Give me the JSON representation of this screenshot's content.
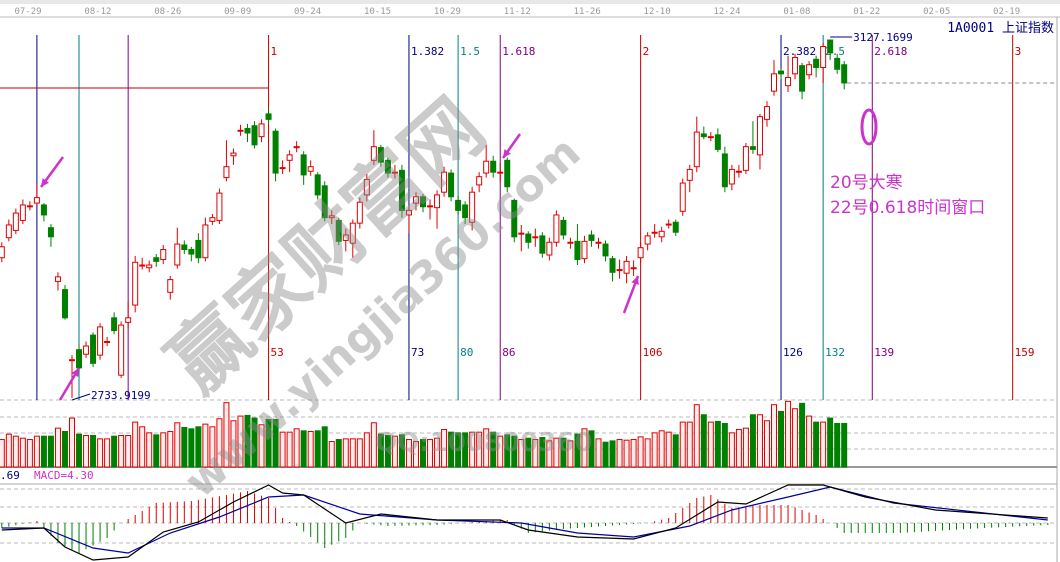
{
  "header": {
    "title": "1A0001 上证指数",
    "dates": [
      "07-29",
      "08-12",
      "08-26",
      "09-09",
      "09-24",
      "10-15",
      "10-29",
      "11-12",
      "11-26",
      "12-10",
      "12-24",
      "01-08",
      "01-22",
      "02-05",
      "02-19"
    ]
  },
  "annotations": {
    "high_label": "3127.1699",
    "low_label": "2733.9199",
    "note_line1": "20号大寒",
    "note_line2": "22号0.618时间窗口",
    "accent_color": "#cc33cc"
  },
  "watermark": {
    "brand": "赢家财富网",
    "url": "www.yingjia360.com",
    "qq": "QQ:100800360"
  },
  "macd_panel": {
    "left_label": ".69",
    "macd_label": "MACD=4.30"
  },
  "colors": {
    "up": "#e00000",
    "down": "#008000",
    "fib_blue": "#000080",
    "fib_teal": "#008080",
    "fib_purple": "#800080",
    "fib_red": "#c00000"
  },
  "chart_data": {
    "type": "candlestick",
    "title": "1A0001 上证指数",
    "price_range": [
      2733.92,
      3127.17
    ],
    "fib_time_lines": [
      {
        "top_label": "1",
        "bottom_label": "53",
        "color": "fib_red"
      },
      {
        "top_label": "1.382",
        "bottom_label": "73",
        "color": "fib_blue"
      },
      {
        "top_label": "1.5",
        "bottom_label": "80",
        "color": "fib_teal"
      },
      {
        "top_label": "1.618",
        "bottom_label": "86",
        "color": "fib_purple"
      },
      {
        "top_label": "2",
        "bottom_label": "106",
        "color": "fib_red"
      },
      {
        "top_label": "2.382",
        "bottom_label": "126",
        "color": "fib_blue"
      },
      {
        "top_label": "2.5",
        "bottom_label": "132",
        "color": "fib_teal"
      },
      {
        "top_label": "2.618",
        "bottom_label": "139",
        "color": "fib_purple"
      },
      {
        "top_label": "3",
        "bottom_label": "159",
        "color": "fib_red"
      }
    ],
    "candles_ohlc": [
      [
        2888,
        2905,
        2883,
        2900
      ],
      [
        2910,
        2930,
        2906,
        2924
      ],
      [
        2918,
        2942,
        2914,
        2937
      ],
      [
        2929,
        2952,
        2925,
        2946
      ],
      [
        2945,
        2950,
        2940,
        2945
      ],
      [
        2948,
        2968,
        2945,
        2954
      ],
      [
        2946,
        2948,
        2928,
        2935
      ],
      [
        2921,
        2925,
        2900,
        2911
      ],
      [
        2862,
        2872,
        2852,
        2867
      ],
      [
        2853,
        2858,
        2820,
        2822
      ],
      [
        2776,
        2781,
        2733.92,
        2776
      ],
      [
        2787,
        2793,
        2762,
        2767
      ],
      [
        2782,
        2796,
        2778,
        2791
      ],
      [
        2803,
        2806,
        2768,
        2772
      ],
      [
        2781,
        2816,
        2776,
        2812
      ],
      [
        2796,
        2801,
        2791,
        2796
      ],
      [
        2822,
        2828,
        2804,
        2808
      ],
      [
        2759,
        2818,
        2756,
        2814
      ],
      [
        2817,
        2840,
        2810,
        2822
      ],
      [
        2836,
        2890,
        2828,
        2883
      ],
      [
        2880,
        2888,
        2875,
        2880
      ],
      [
        2877,
        2885,
        2872,
        2880
      ],
      [
        2888,
        2892,
        2878,
        2884
      ],
      [
        2886,
        2902,
        2881,
        2897
      ],
      [
        2850,
        2868,
        2842,
        2864
      ],
      [
        2880,
        2921,
        2876,
        2903
      ],
      [
        2902,
        2907,
        2892,
        2897
      ],
      [
        2897,
        2900,
        2884,
        2892
      ],
      [
        2907,
        2915,
        2882,
        2888
      ],
      [
        2888,
        2932,
        2884,
        2924
      ],
      [
        2928,
        2936,
        2924,
        2932
      ],
      [
        2929,
        2964,
        2925,
        2959
      ],
      [
        2976,
        3017,
        2972,
        2988
      ],
      [
        3000,
        3008,
        2990,
        3003
      ],
      [
        3028,
        3034,
        3022,
        3028
      ],
      [
        3030,
        3035,
        3015,
        3025
      ],
      [
        3033,
        3038,
        3008,
        3012
      ],
      [
        3021,
        3040,
        3015,
        3035
      ],
      [
        3046,
        3052,
        3036,
        3040
      ],
      [
        3027,
        3030,
        2972,
        2981
      ],
      [
        2987,
        2995,
        2980,
        2987
      ],
      [
        2995,
        3006,
        2982,
        3001
      ],
      [
        3010,
        3016,
        3004,
        3010
      ],
      [
        3001,
        3005,
        2968,
        2979
      ],
      [
        2983,
        2995,
        2978,
        2988
      ],
      [
        2979,
        2982,
        2952,
        2957
      ],
      [
        2967,
        2972,
        2928,
        2932
      ],
      [
        2932,
        2940,
        2925,
        2934
      ],
      [
        2929,
        2932,
        2902,
        2906
      ],
      [
        2907,
        2920,
        2895,
        2913
      ],
      [
        2904,
        2930,
        2888,
        2926
      ],
      [
        2926,
        2954,
        2920,
        2949
      ],
      [
        2957,
        2980,
        2950,
        2974
      ],
      [
        2995,
        3028,
        2990,
        3010
      ],
      [
        3009,
        3012,
        2988,
        2993
      ],
      [
        2995,
        2998,
        2976,
        2981
      ],
      [
        2982,
        2990,
        2975,
        2982
      ],
      [
        2984,
        2990,
        2932,
        2940
      ],
      [
        2935,
        2945,
        2915,
        2940
      ],
      [
        2948,
        2960,
        2940,
        2955
      ],
      [
        2955,
        2958,
        2938,
        2944
      ],
      [
        2945,
        2952,
        2930,
        2945
      ],
      [
        2943,
        2962,
        2920,
        2957
      ],
      [
        2960,
        2988,
        2955,
        2982
      ],
      [
        2981,
        2985,
        2950,
        2955
      ],
      [
        2951,
        2956,
        2935,
        2940
      ],
      [
        2946,
        2950,
        2925,
        2932
      ],
      [
        2927,
        2966,
        2918,
        2960
      ],
      [
        2968,
        2982,
        2960,
        2977
      ],
      [
        2981,
        3012,
        2976,
        2994
      ],
      [
        2994,
        3000,
        2976,
        2982
      ],
      [
        2982,
        2992,
        2972,
        2982
      ],
      [
        2995,
        2998,
        2960,
        2966
      ],
      [
        2951,
        2953,
        2905,
        2911
      ],
      [
        2915,
        2924,
        2895,
        2915
      ],
      [
        2914,
        2917,
        2898,
        2905
      ],
      [
        2911,
        2920,
        2900,
        2911
      ],
      [
        2912,
        2916,
        2888,
        2893
      ],
      [
        2891,
        2910,
        2885,
        2905
      ],
      [
        2905,
        2940,
        2900,
        2935
      ],
      [
        2929,
        2933,
        2908,
        2913
      ],
      [
        2905,
        2910,
        2898,
        2905
      ],
      [
        2906,
        2925,
        2880,
        2886
      ],
      [
        2887,
        2912,
        2882,
        2906
      ],
      [
        2913,
        2918,
        2900,
        2907
      ],
      [
        2905,
        2910,
        2898,
        2905
      ],
      [
        2903,
        2907,
        2884,
        2890
      ],
      [
        2887,
        2890,
        2862,
        2872
      ],
      [
        2875,
        2886,
        2865,
        2875
      ],
      [
        2871,
        2890,
        2860,
        2884
      ],
      [
        2877,
        2885,
        2868,
        2877
      ],
      [
        2888,
        2905,
        2882,
        2899
      ],
      [
        2903,
        2916,
        2896,
        2912
      ],
      [
        2916,
        2925,
        2910,
        2916
      ],
      [
        2911,
        2922,
        2905,
        2917
      ],
      [
        2925,
        2930,
        2920,
        2925
      ],
      [
        2927,
        2930,
        2912,
        2916
      ],
      [
        2939,
        2975,
        2934,
        2970
      ],
      [
        2973,
        2990,
        2960,
        2985
      ],
      [
        2988,
        3043,
        2982,
        3026
      ],
      [
        3024,
        3032,
        3018,
        3021
      ],
      [
        3021,
        3026,
        3016,
        3021
      ],
      [
        3023,
        3030,
        3004,
        3007
      ],
      [
        3002,
        3010,
        2960,
        2966
      ],
      [
        2969,
        2990,
        2962,
        2985
      ],
      [
        2983,
        2990,
        2976,
        2983
      ],
      [
        2984,
        3014,
        2980,
        3010
      ],
      [
        3010,
        3038,
        3002,
        3007
      ],
      [
        3001,
        3046,
        2985,
        3043
      ],
      [
        3040,
        3060,
        3032,
        3054
      ],
      [
        3071,
        3105,
        3066,
        3090
      ],
      [
        3093,
        3096,
        3084,
        3090
      ],
      [
        3077,
        3110,
        3070,
        3086
      ],
      [
        3090,
        3112,
        3084,
        3108
      ],
      [
        3099,
        3102,
        3062,
        3071
      ],
      [
        3089,
        3104,
        3084,
        3100
      ],
      [
        3106,
        3110,
        3086,
        3097
      ],
      [
        3097,
        3124,
        3080,
        3120
      ],
      [
        3127.17,
        3127.17,
        3105,
        3113
      ],
      [
        3107,
        3112,
        3090,
        3095
      ],
      [
        3100,
        3104,
        3073,
        3080
      ]
    ],
    "volume_relative": [
      41,
      49,
      46,
      43,
      41,
      46,
      46,
      46,
      58,
      53,
      73,
      49,
      47,
      47,
      42,
      42,
      46,
      47,
      47,
      67,
      60,
      51,
      48,
      51,
      53,
      66,
      59,
      57,
      60,
      64,
      60,
      72,
      96,
      69,
      76,
      77,
      73,
      63,
      71,
      71,
      52,
      52,
      57,
      54,
      53,
      54,
      60,
      38,
      41,
      42,
      42,
      42,
      51,
      66,
      49,
      47,
      46,
      48,
      41,
      38,
      41,
      41,
      43,
      56,
      52,
      51,
      51,
      52,
      52,
      57,
      52,
      46,
      48,
      46,
      41,
      43,
      41,
      44,
      39,
      43,
      43,
      39,
      49,
      57,
      54,
      42,
      37,
      39,
      41,
      40,
      41,
      45,
      42,
      51,
      54,
      52,
      48,
      67,
      67,
      93,
      78,
      67,
      68,
      65,
      51,
      56,
      58,
      78,
      78,
      69,
      93,
      83,
      98,
      87,
      95,
      76,
      67,
      67,
      73,
      65,
      65
    ],
    "macd": {
      "dif": [
        [
          0,
          -3.5
        ],
        [
          6,
          -2.5
        ],
        [
          9,
          -12
        ],
        [
          13,
          -18.5
        ],
        [
          18,
          -17
        ],
        [
          23,
          -4.5
        ],
        [
          28,
          0.5
        ],
        [
          33,
          10.5
        ],
        [
          38,
          19
        ],
        [
          40,
          15
        ],
        [
          43,
          14
        ],
        [
          49,
          0
        ],
        [
          54,
          4.5
        ],
        [
          62,
          1.5
        ],
        [
          71,
          1.5
        ],
        [
          75,
          -3.5
        ],
        [
          82,
          -7
        ],
        [
          90,
          -8
        ],
        [
          96,
          -2.5
        ],
        [
          102,
          10.5
        ],
        [
          106,
          9.5
        ],
        [
          112,
          19
        ],
        [
          117,
          19
        ],
        [
          123,
          13
        ],
        [
          133,
          6.5
        ],
        [
          149,
          2.5
        ]
      ],
      "dea": [
        [
          0,
          -2.5
        ],
        [
          6,
          -2.5
        ],
        [
          13,
          -12.5
        ],
        [
          18,
          -15
        ],
        [
          24,
          -5
        ],
        [
          31,
          3
        ],
        [
          38,
          13
        ],
        [
          43,
          14
        ],
        [
          51,
          4.5
        ],
        [
          62,
          1.5
        ],
        [
          74,
          0
        ],
        [
          82,
          -5
        ],
        [
          90,
          -7
        ],
        [
          98,
          -1.5
        ],
        [
          104,
          6.5
        ],
        [
          112,
          13
        ],
        [
          118,
          18
        ],
        [
          127,
          10
        ],
        [
          149,
          1.5
        ]
      ],
      "histogram": [
        [
          0,
          -2.5
        ],
        [
          5,
          1
        ],
        [
          8,
          -10
        ],
        [
          11,
          -15
        ],
        [
          15,
          -7.5
        ],
        [
          17,
          0
        ],
        [
          19,
          4
        ],
        [
          22,
          10
        ],
        [
          27,
          11
        ],
        [
          32,
          14
        ],
        [
          35,
          16
        ],
        [
          38,
          12.5
        ],
        [
          40,
          2.5
        ],
        [
          42,
          -1.5
        ],
        [
          46,
          -12.5
        ],
        [
          49,
          -7.5
        ],
        [
          51,
          0
        ],
        [
          55,
          -1.5
        ],
        [
          62,
          -1
        ],
        [
          69,
          1
        ],
        [
          72,
          1.5
        ],
        [
          75,
          -5
        ],
        [
          80,
          -3
        ],
        [
          88,
          -1
        ],
        [
          92,
          0
        ],
        [
          95,
          2.5
        ],
        [
          99,
          12.5
        ],
        [
          101,
          14
        ],
        [
          104,
          7.5
        ],
        [
          108,
          9
        ],
        [
          112,
          9
        ],
        [
          116,
          4
        ],
        [
          118,
          0
        ],
        [
          120,
          -5
        ],
        [
          128,
          -5
        ],
        [
          140,
          -2.5
        ],
        [
          149,
          -1
        ]
      ]
    }
  }
}
